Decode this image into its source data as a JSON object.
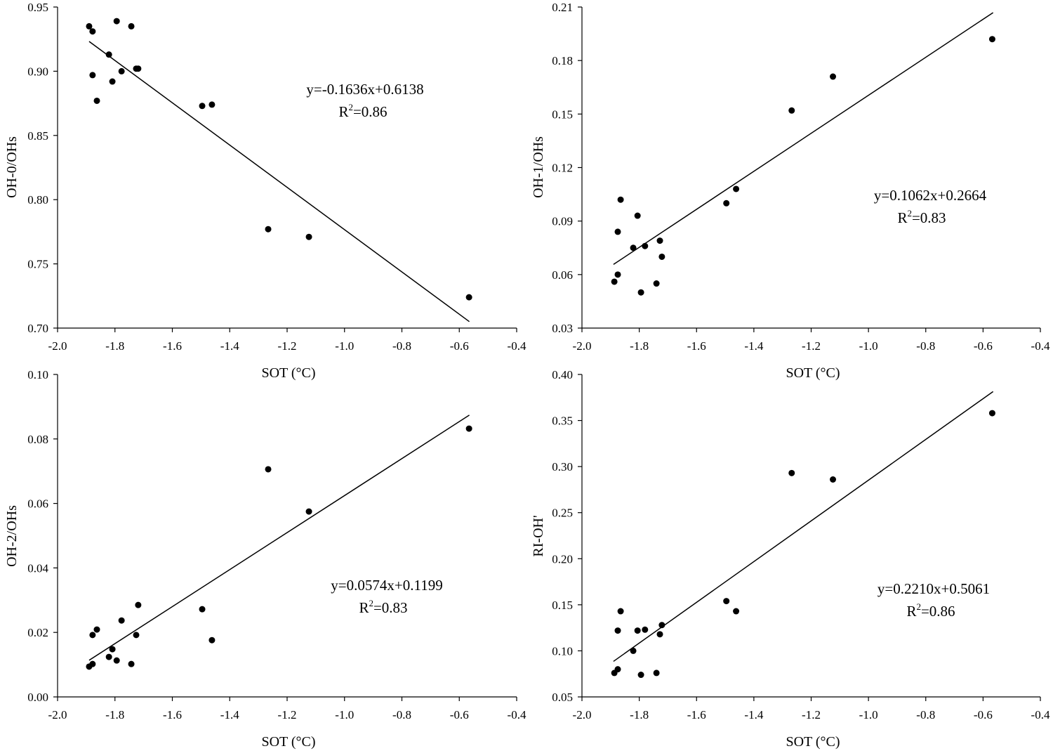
{
  "chart_data": [
    {
      "type": "scatter",
      "xlabel": "SOT (°C)",
      "ylabel": "OH-0/OHs",
      "xlim": [
        -2.0,
        -0.4
      ],
      "ylim": [
        0.7,
        0.95
      ],
      "xticks": [
        "-2.0",
        "-1.8",
        "-1.6",
        "-1.4",
        "-1.2",
        "-1.0",
        "-0.8",
        "-0.6",
        "-0.4"
      ],
      "yticks": [
        "0.70",
        "0.75",
        "0.80",
        "0.85",
        "0.90",
        "0.95"
      ],
      "equation": "y=-0.1636x+0.6138",
      "r2_prefix": "R",
      "r2_sup": "2",
      "r2_value": "=0.86",
      "fit": {
        "slope": -0.1636,
        "intercept": 0.6138,
        "x_range": [
          -1.89,
          -0.565
        ]
      },
      "points": [
        [
          -1.89,
          0.935
        ],
        [
          -1.878,
          0.931
        ],
        [
          -1.794,
          0.939
        ],
        [
          -1.743,
          0.935
        ],
        [
          -1.821,
          0.913
        ],
        [
          -1.878,
          0.897
        ],
        [
          -1.777,
          0.9
        ],
        [
          -1.809,
          0.892
        ],
        [
          -1.863,
          0.877
        ],
        [
          -1.726,
          0.902
        ],
        [
          -1.719,
          0.902
        ],
        [
          -1.496,
          0.873
        ],
        [
          -1.462,
          0.874
        ],
        [
          -1.266,
          0.777
        ],
        [
          -1.124,
          0.771
        ],
        [
          -0.566,
          0.724
        ]
      ]
    },
    {
      "type": "scatter",
      "xlabel": "SOT (°C)",
      "ylabel": "OH-1/OHs",
      "xlim": [
        -2.0,
        -0.4
      ],
      "ylim": [
        0.03,
        0.21
      ],
      "xticks": [
        "-2.0",
        "-1.8",
        "-1.6",
        "-1.4",
        "-1.2",
        "-1.0",
        "-0.8",
        "-0.6",
        "-0.4"
      ],
      "yticks": [
        "0.03",
        "0.06",
        "0.09",
        "0.12",
        "0.15",
        "0.18",
        "0.21"
      ],
      "equation": "y=0.1062x+0.2664",
      "r2_prefix": "R",
      "r2_sup": "2",
      "r2_value": "=0.83",
      "fit": {
        "slope": 0.1062,
        "intercept": 0.2664,
        "x_range": [
          -1.89,
          -0.565
        ]
      },
      "points": [
        [
          -1.887,
          0.056
        ],
        [
          -1.875,
          0.06
        ],
        [
          -1.875,
          0.084
        ],
        [
          -1.865,
          0.102
        ],
        [
          -1.821,
          0.075
        ],
        [
          -1.806,
          0.093
        ],
        [
          -1.794,
          0.05
        ],
        [
          -1.78,
          0.076
        ],
        [
          -1.74,
          0.055
        ],
        [
          -1.728,
          0.079
        ],
        [
          -1.721,
          0.07
        ],
        [
          -1.496,
          0.1
        ],
        [
          -1.462,
          0.108
        ],
        [
          -1.268,
          0.152
        ],
        [
          -1.124,
          0.171
        ],
        [
          -0.568,
          0.192
        ]
      ]
    },
    {
      "type": "scatter",
      "xlabel": "SOT (°C)",
      "ylabel": "OH-2/OHs",
      "xlim": [
        -2.0,
        -0.4
      ],
      "ylim": [
        0.0,
        0.1
      ],
      "xticks": [
        "-2.0",
        "-1.8",
        "-1.6",
        "-1.4",
        "-1.2",
        "-1.0",
        "-0.8",
        "-0.6",
        "-0.4"
      ],
      "yticks": [
        "0.00",
        "0.02",
        "0.04",
        "0.06",
        "0.08",
        "0.10"
      ],
      "equation": "y=0.0574x+0.1199",
      "r2_prefix": "R",
      "r2_sup": "2",
      "r2_value": "=0.83",
      "fit": {
        "slope": 0.0574,
        "intercept": 0.1199,
        "x_range": [
          -1.89,
          -0.565
        ]
      },
      "points": [
        [
          -1.89,
          0.0094
        ],
        [
          -1.878,
          0.0102
        ],
        [
          -1.878,
          0.0192
        ],
        [
          -1.863,
          0.0209
        ],
        [
          -1.821,
          0.0124
        ],
        [
          -1.809,
          0.0148
        ],
        [
          -1.794,
          0.0113
        ],
        [
          -1.777,
          0.0237
        ],
        [
          -1.743,
          0.0102
        ],
        [
          -1.726,
          0.0192
        ],
        [
          -1.719,
          0.0285
        ],
        [
          -1.496,
          0.0272
        ],
        [
          -1.462,
          0.0176
        ],
        [
          -1.266,
          0.0706
        ],
        [
          -1.124,
          0.0575
        ],
        [
          -0.566,
          0.0832
        ]
      ]
    },
    {
      "type": "scatter",
      "xlabel": "SOT (°C)",
      "ylabel": "RI-OH'",
      "xlim": [
        -2.0,
        -0.4
      ],
      "ylim": [
        0.05,
        0.4
      ],
      "xticks": [
        "-2.0",
        "-1.8",
        "-1.6",
        "-1.4",
        "-1.2",
        "-1.0",
        "-0.8",
        "-0.6",
        "-0.4"
      ],
      "yticks": [
        "0.05",
        "0.10",
        "0.15",
        "0.20",
        "0.25",
        "0.30",
        "0.35",
        "0.40"
      ],
      "equation": "y=0.2210x+0.5061",
      "r2_prefix": "R",
      "r2_sup": "2",
      "r2_value": "=0.86",
      "fit": {
        "slope": 0.221,
        "intercept": 0.5061,
        "x_range": [
          -1.89,
          -0.565
        ]
      },
      "points": [
        [
          -1.887,
          0.076
        ],
        [
          -1.875,
          0.08
        ],
        [
          -1.875,
          0.122
        ],
        [
          -1.865,
          0.143
        ],
        [
          -1.821,
          0.1
        ],
        [
          -1.806,
          0.122
        ],
        [
          -1.794,
          0.074
        ],
        [
          -1.78,
          0.123
        ],
        [
          -1.74,
          0.076
        ],
        [
          -1.728,
          0.118
        ],
        [
          -1.721,
          0.128
        ],
        [
          -1.496,
          0.154
        ],
        [
          -1.462,
          0.143
        ],
        [
          -1.268,
          0.293
        ],
        [
          -1.124,
          0.286
        ],
        [
          -0.568,
          0.358
        ]
      ]
    }
  ]
}
